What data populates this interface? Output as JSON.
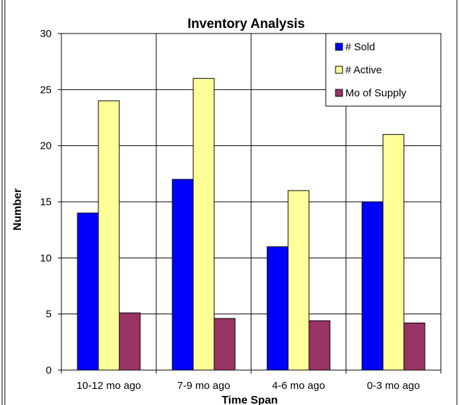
{
  "chart_data": {
    "type": "bar",
    "title": "Inventory Analysis",
    "xlabel": "Time Span",
    "ylabel": "Number",
    "categories": [
      "10-12 mo ago",
      "7-9 mo ago",
      "4-6 mo ago",
      "0-3 mo ago"
    ],
    "series": [
      {
        "name": "# Sold",
        "color": "#0000ff",
        "values": [
          14,
          17,
          11,
          15
        ]
      },
      {
        "name": "# Active",
        "color": "#ffff99",
        "values": [
          24,
          26,
          16,
          21
        ]
      },
      {
        "name": "Mo of Supply",
        "color": "#993366",
        "values": [
          5.1,
          4.6,
          4.4,
          4.2
        ]
      }
    ],
    "yticks": [
      "0",
      "5",
      "10",
      "15",
      "20",
      "25",
      "30"
    ],
    "ylim": [
      0,
      30
    ],
    "grid": true,
    "legend_position": "top-right"
  }
}
